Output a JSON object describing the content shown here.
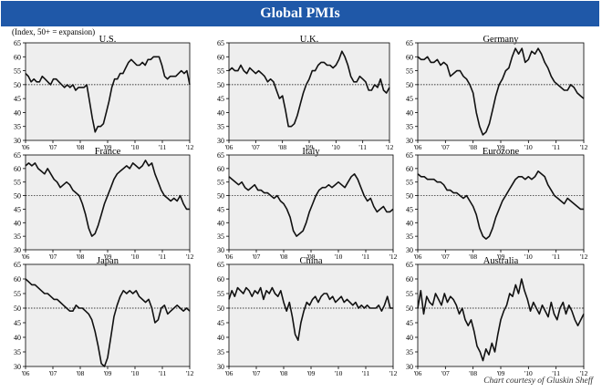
{
  "header": {
    "title": "Global PMIs"
  },
  "yunit": "(Index, 50+ = expansion)",
  "credit": "Chart courtesy of  Gluskin Sheff",
  "colors": {
    "banner": "#1f58a8",
    "plot_bg": "#eeeeee",
    "line": "#111111"
  },
  "chart_data": [
    {
      "type": "line",
      "title": "U.S.",
      "ylim": [
        30,
        65
      ],
      "yticks": [
        30,
        35,
        40,
        45,
        50,
        55,
        60,
        65
      ],
      "xticks": [
        "'06",
        "'07",
        "'08",
        "'09",
        "'10",
        "'11",
        "'12"
      ],
      "reference": 50,
      "values": [
        54,
        53,
        51,
        52,
        51,
        51,
        53,
        52,
        51,
        50,
        52,
        52,
        51,
        50,
        49,
        50,
        49,
        50,
        48,
        49,
        49,
        49,
        50,
        44,
        38,
        33,
        35,
        35,
        36,
        40,
        44,
        49,
        52,
        52,
        54,
        54,
        56,
        58,
        59,
        58,
        57,
        57,
        58,
        57,
        59,
        59,
        60,
        60,
        60,
        57,
        53,
        52,
        53,
        53,
        53,
        54,
        55,
        54,
        55,
        50
      ]
    },
    {
      "type": "line",
      "title": "U.K.",
      "ylim": [
        30,
        65
      ],
      "yticks": [
        30,
        35,
        40,
        45,
        50,
        55,
        60,
        65
      ],
      "xticks": [
        "'06",
        "'07",
        "'08",
        "'09",
        "'10",
        "'11",
        "'12"
      ],
      "reference": 50,
      "values": [
        55,
        56,
        55,
        55,
        57,
        55,
        54,
        56,
        55,
        54,
        55,
        54,
        53,
        51,
        52,
        51,
        48,
        45,
        46,
        41,
        35,
        35,
        36,
        39,
        43,
        47,
        50,
        52,
        55,
        55,
        57,
        58,
        58,
        57,
        57,
        56,
        57,
        59,
        62,
        60,
        57,
        53,
        51,
        51,
        53,
        52,
        51,
        48,
        48,
        50,
        49,
        52,
        48,
        47,
        49
      ]
    },
    {
      "type": "line",
      "title": "Germany",
      "ylim": [
        30,
        65
      ],
      "yticks": [
        30,
        35,
        40,
        45,
        50,
        55,
        60,
        65
      ],
      "xticks": [
        "'06",
        "'07",
        "'08",
        "'09",
        "'10",
        "'11",
        "'12"
      ],
      "reference": 50,
      "values": [
        60,
        59,
        59,
        60,
        58,
        58,
        59,
        57,
        58,
        57,
        53,
        54,
        55,
        55,
        53,
        52,
        50,
        47,
        40,
        35,
        32,
        33,
        36,
        41,
        46,
        50,
        52,
        55,
        56,
        60,
        63,
        61,
        63,
        58,
        59,
        62,
        61,
        63,
        61,
        58,
        56,
        53,
        51,
        50,
        49,
        48,
        48,
        50,
        49,
        47,
        46,
        45
      ]
    },
    {
      "type": "line",
      "title": "France",
      "ylim": [
        30,
        65
      ],
      "yticks": [
        30,
        35,
        40,
        45,
        50,
        55,
        60,
        65
      ],
      "xticks": [
        "'06",
        "'07",
        "'08",
        "'09",
        "'10",
        "'11",
        "'12"
      ],
      "reference": 50,
      "values": [
        61,
        62,
        61,
        62,
        60,
        59,
        58,
        60,
        58,
        56,
        55,
        53,
        54,
        55,
        54,
        52,
        51,
        50,
        47,
        43,
        38,
        35,
        36,
        39,
        43,
        47,
        50,
        53,
        56,
        58,
        59,
        60,
        61,
        60,
        62,
        61,
        60,
        61,
        63,
        61,
        62,
        58,
        55,
        52,
        50,
        49,
        48,
        49,
        48,
        50,
        47,
        45,
        45
      ]
    },
    {
      "type": "line",
      "title": "Italy",
      "ylim": [
        30,
        65
      ],
      "yticks": [
        30,
        35,
        40,
        45,
        50,
        55,
        60,
        65
      ],
      "xticks": [
        "'06",
        "'07",
        "'08",
        "'09",
        "'10",
        "'11",
        "'12"
      ],
      "reference": 50,
      "values": [
        57,
        56,
        55,
        54,
        55,
        53,
        52,
        53,
        54,
        52,
        52,
        51,
        51,
        50,
        49,
        50,
        48,
        47,
        45,
        42,
        37,
        35,
        36,
        37,
        40,
        44,
        47,
        50,
        52,
        53,
        53,
        54,
        53,
        54,
        55,
        54,
        53,
        55,
        57,
        58,
        56,
        53,
        50,
        48,
        49,
        46,
        44,
        45,
        46,
        44,
        44,
        45
      ]
    },
    {
      "type": "line",
      "title": "Eurozone",
      "ylim": [
        30,
        65
      ],
      "yticks": [
        30,
        35,
        40,
        45,
        50,
        55,
        60,
        65
      ],
      "xticks": [
        "'06",
        "'07",
        "'08",
        "'09",
        "'10",
        "'11",
        "'12"
      ],
      "reference": 50,
      "values": [
        58,
        57,
        57,
        56,
        56,
        56,
        55,
        55,
        54,
        52,
        52,
        51,
        51,
        50,
        49,
        50,
        48,
        46,
        43,
        38,
        35,
        34,
        35,
        38,
        42,
        45,
        48,
        50,
        52,
        54,
        56,
        57,
        57,
        56,
        57,
        56,
        57,
        59,
        58,
        57,
        54,
        52,
        50,
        49,
        48,
        47,
        49,
        48,
        47,
        46,
        45,
        45
      ]
    },
    {
      "type": "line",
      "title": "Japan",
      "ylim": [
        30,
        65
      ],
      "yticks": [
        30,
        35,
        40,
        45,
        50,
        55,
        60,
        65
      ],
      "xticks": [
        "'06",
        "'07",
        "'08",
        "'09",
        "'10",
        "'11",
        "'12"
      ],
      "reference": 50,
      "values": [
        60,
        59,
        58,
        58,
        57,
        56,
        55,
        55,
        54,
        53,
        53,
        52,
        51,
        50,
        49,
        49,
        51,
        50,
        50,
        49,
        48,
        46,
        42,
        37,
        31,
        30,
        33,
        40,
        47,
        51,
        54,
        56,
        55,
        56,
        55,
        56,
        54,
        53,
        52,
        53,
        50,
        45,
        46,
        50,
        51,
        48,
        49,
        50,
        51,
        50,
        49,
        50,
        49
      ]
    },
    {
      "type": "line",
      "title": "China",
      "ylim": [
        30,
        65
      ],
      "yticks": [
        30,
        35,
        40,
        45,
        50,
        55,
        60,
        65
      ],
      "xticks": [
        "'06",
        "'07",
        "'08",
        "'09",
        "'10",
        "'11",
        "'12"
      ],
      "reference": 50,
      "values": [
        53,
        56,
        54,
        57,
        56,
        55,
        57,
        56,
        54,
        56,
        55,
        57,
        53,
        56,
        55,
        57,
        55,
        54,
        56,
        52,
        49,
        52,
        47,
        41,
        39,
        45,
        49,
        52,
        51,
        53,
        54,
        52,
        54,
        55,
        55,
        53,
        54,
        52,
        53,
        54,
        52,
        53,
        52,
        51,
        52,
        50,
        51,
        50,
        51,
        50,
        50,
        50,
        51,
        49,
        51,
        54,
        50,
        50
      ]
    },
    {
      "type": "line",
      "title": "Australia",
      "ylim": [
        30,
        65
      ],
      "yticks": [
        30,
        35,
        40,
        45,
        50,
        55,
        60,
        65
      ],
      "xticks": [
        "'06",
        "'07",
        "'08",
        "'09",
        "'10",
        "'11",
        "'12"
      ],
      "reference": 50,
      "values": [
        50,
        56,
        48,
        54,
        52,
        51,
        55,
        53,
        51,
        55,
        52,
        54,
        53,
        51,
        48,
        50,
        46,
        44,
        46,
        42,
        37,
        35,
        32,
        36,
        34,
        38,
        35,
        41,
        46,
        49,
        51,
        55,
        54,
        58,
        55,
        60,
        56,
        53,
        49,
        52,
        50,
        48,
        51,
        49,
        47,
        52,
        48,
        46,
        50,
        52,
        48,
        51,
        49,
        46,
        44,
        46,
        48
      ]
    }
  ]
}
